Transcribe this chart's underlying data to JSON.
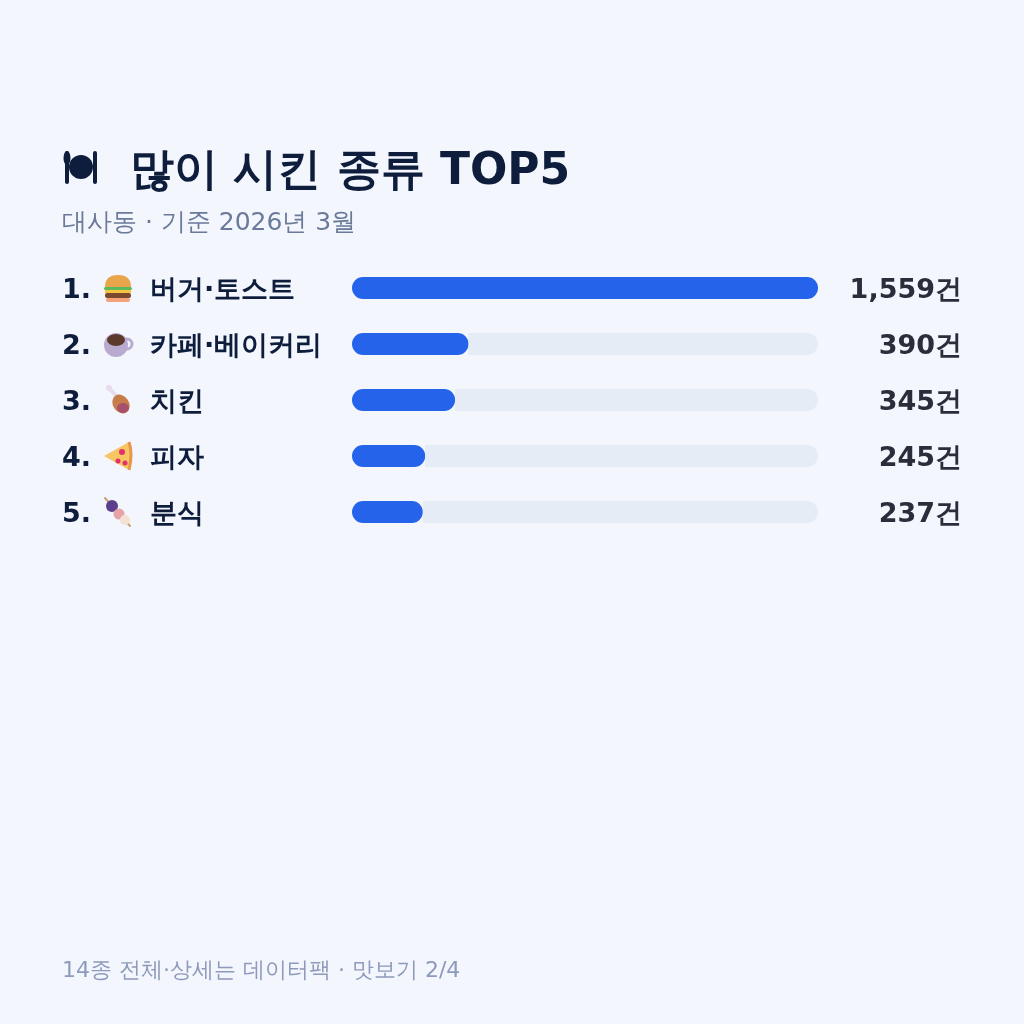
{
  "chart_data": {
    "type": "bar",
    "orientation": "horizontal",
    "stacked": true,
    "title": "많이 시킨 종류 TOP5",
    "subtitle": "대사동 · 기준 2026년 3월",
    "categories": [
      "1. 버거·토스트",
      "2. 카페·베이커리",
      "3. 치킨",
      "4. 피자",
      "5. 분식"
    ],
    "series": [
      {
        "color": "#2563eb",
        "values": [
          1559,
          390,
          345,
          245,
          237
        ],
        "value_labels": [
          "1,559건",
          "390건",
          "345건",
          "245건",
          "237건"
        ]
      },
      {
        "color": "#e5ecf6",
        "values": [
          null,
          1169,
          1214,
          1314,
          1322
        ]
      }
    ],
    "xlim": [
      0,
      1559
    ],
    "tick_labels": "y",
    "annotations": [
      "14종 전체·상세는 데이터팩 · 맛보기 2/4"
    ]
  }
}
